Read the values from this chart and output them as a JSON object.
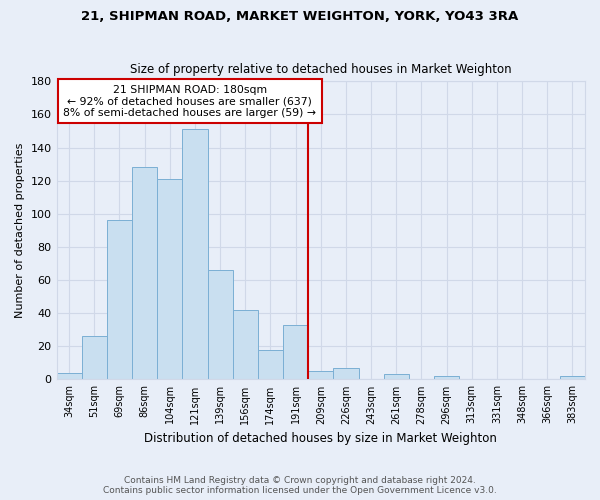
{
  "title": "21, SHIPMAN ROAD, MARKET WEIGHTON, YORK, YO43 3RA",
  "subtitle": "Size of property relative to detached houses in Market Weighton",
  "xlabel": "Distribution of detached houses by size in Market Weighton",
  "ylabel": "Number of detached properties",
  "bar_labels": [
    "34sqm",
    "51sqm",
    "69sqm",
    "86sqm",
    "104sqm",
    "121sqm",
    "139sqm",
    "156sqm",
    "174sqm",
    "191sqm",
    "209sqm",
    "226sqm",
    "243sqm",
    "261sqm",
    "278sqm",
    "296sqm",
    "313sqm",
    "331sqm",
    "348sqm",
    "366sqm",
    "383sqm"
  ],
  "bar_values": [
    4,
    26,
    96,
    128,
    121,
    151,
    66,
    42,
    18,
    33,
    5,
    7,
    0,
    3,
    0,
    2,
    0,
    0,
    0,
    0,
    2
  ],
  "bar_color": "#c9dff0",
  "bar_edge_color": "#7bafd4",
  "vline_x": 9.5,
  "vline_color": "#cc0000",
  "annotation_title": "21 SHIPMAN ROAD: 180sqm",
  "annotation_line1": "← 92% of detached houses are smaller (637)",
  "annotation_line2": "8% of semi-detached houses are larger (59) →",
  "annotation_box_color": "#ffffff",
  "annotation_box_edge": "#cc0000",
  "ylim": [
    0,
    180
  ],
  "yticks": [
    0,
    20,
    40,
    60,
    80,
    100,
    120,
    140,
    160,
    180
  ],
  "footer1": "Contains HM Land Registry data © Crown copyright and database right 2024.",
  "footer2": "Contains public sector information licensed under the Open Government Licence v3.0.",
  "background_color": "#e8eef8",
  "grid_color": "#d0d8e8"
}
